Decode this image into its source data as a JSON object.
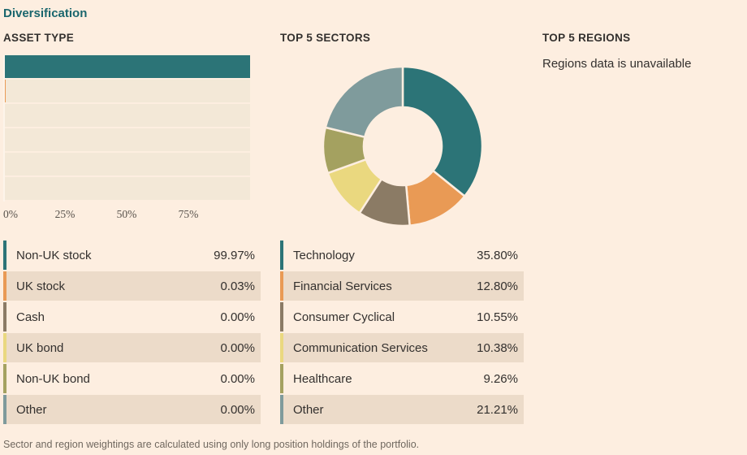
{
  "page": {
    "title": "Diversification",
    "footnote": "Sector and region weightings are calculated using only long position holdings of the portfolio."
  },
  "colors": {
    "background": "#fdeee0",
    "text": "#33302e",
    "title_teal": "#1a666d",
    "bar_track": "#f3e8d7",
    "row_alt": "#ecdbc9",
    "footnote_gray": "#70685f",
    "axis_label": "#57514b",
    "palette": [
      "#2c7477",
      "#e99a55",
      "#8b7b65",
      "#ead87f",
      "#a4a160",
      "#7f9b9c"
    ]
  },
  "asset_type": {
    "header": "ASSET TYPE",
    "axis_ticks": [
      "0%",
      "25%",
      "50%",
      "75%"
    ],
    "rows": [
      {
        "label": "Non-UK stock",
        "value": "99.97%"
      },
      {
        "label": "UK stock",
        "value": "0.03%"
      },
      {
        "label": "Cash",
        "value": "0.00%"
      },
      {
        "label": "UK bond",
        "value": "0.00%"
      },
      {
        "label": "Non-UK bond",
        "value": "0.00%"
      },
      {
        "label": "Other",
        "value": "0.00%"
      }
    ]
  },
  "sectors": {
    "header": "TOP 5 SECTORS",
    "rows": [
      {
        "label": "Technology",
        "value": "35.80%"
      },
      {
        "label": "Financial Services",
        "value": "12.80%"
      },
      {
        "label": "Consumer Cyclical",
        "value": "10.55%"
      },
      {
        "label": "Communication Services",
        "value": "10.38%"
      },
      {
        "label": "Healthcare",
        "value": "9.26%"
      },
      {
        "label": "Other",
        "value": "21.21%"
      }
    ]
  },
  "regions": {
    "header": "TOP 5 REGIONS",
    "message": "Regions data is unavailable"
  },
  "chart_data": [
    {
      "type": "bar",
      "orientation": "horizontal",
      "title": "ASSET TYPE",
      "categories": [
        "Non-UK stock",
        "UK stock",
        "Cash",
        "UK bond",
        "Non-UK bond",
        "Other"
      ],
      "values": [
        99.97,
        0.03,
        0.0,
        0.0,
        0.0,
        0.0
      ],
      "xlabel": "",
      "ylabel": "",
      "xlim": [
        0,
        100
      ],
      "tick_labels": [
        "0%",
        "25%",
        "50%",
        "75%"
      ],
      "tick_positions_pct": [
        0,
        25,
        50,
        75
      ],
      "grid": false,
      "legend_position": "none"
    },
    {
      "type": "pie",
      "subtype": "donut",
      "title": "TOP 5 SECTORS",
      "categories": [
        "Technology",
        "Financial Services",
        "Consumer Cyclical",
        "Communication Services",
        "Healthcare",
        "Other"
      ],
      "values": [
        35.8,
        12.8,
        10.55,
        10.38,
        9.26,
        21.21
      ],
      "start_angle_deg": 0,
      "direction": "clockwise",
      "inner_radius_ratio": 0.49,
      "legend_position": "none"
    }
  ]
}
